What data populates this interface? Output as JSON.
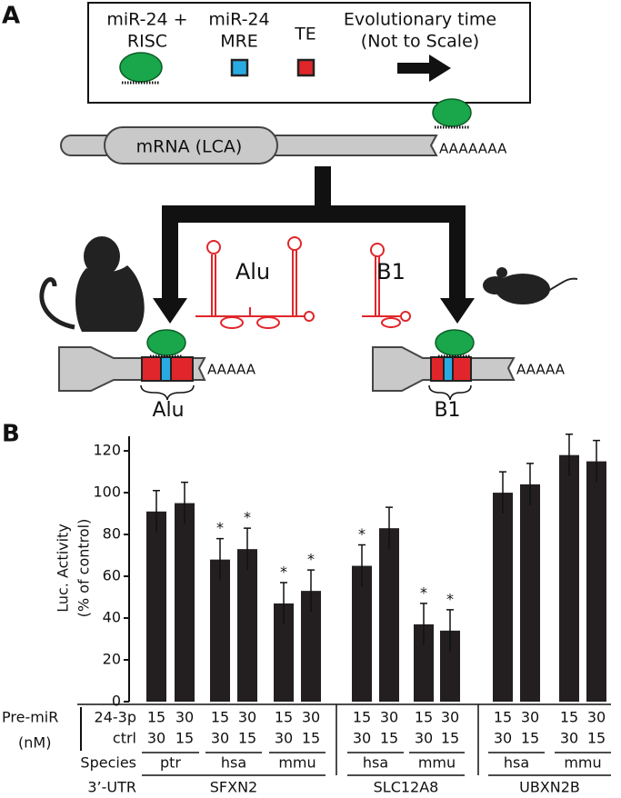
{
  "panel_a": {
    "label": "A",
    "legend": [
      {
        "lines": [
          "miR-24 +",
          "RISC"
        ]
      },
      {
        "lines": [
          "miR-24",
          "MRE"
        ]
      },
      {
        "lines": [
          "TE"
        ]
      },
      {
        "lines": [
          "Evolutionary time",
          "(Not to Scale)"
        ]
      }
    ],
    "mrna_label": "mRNA (LCA)",
    "polya_long": "AAAAAAA",
    "polya_short": "AAAAA",
    "te_labels": [
      "Alu",
      "B1"
    ]
  },
  "chart_data": {
    "type": "bar",
    "panel_label": "B",
    "y_label": [
      "Luc. Activity",
      "(% of control)"
    ],
    "ylim": [
      0,
      127
    ],
    "yticks": [
      0,
      20,
      40,
      60,
      80,
      100,
      120
    ],
    "color": "#231f20",
    "values": [
      91,
      95,
      68,
      73,
      47,
      53,
      65,
      83,
      37,
      34,
      100,
      104,
      118,
      115
    ],
    "errors": [
      10,
      10,
      10,
      10,
      10,
      10,
      10,
      10,
      10,
      10,
      10,
      10,
      10,
      10
    ],
    "significant": [
      false,
      false,
      true,
      true,
      true,
      true,
      true,
      false,
      true,
      true,
      false,
      false,
      false,
      false
    ],
    "sig_marker": "*",
    "row_labels": {
      "premir": "Pre-miR",
      "unit": "(nM)",
      "mir": "24-3p",
      "ctrl": "ctrl",
      "species": "Species",
      "utr": "3’-UTR"
    },
    "mir_conc": [
      15,
      30,
      15,
      30,
      15,
      30,
      15,
      30,
      15,
      30,
      15,
      30,
      15,
      30
    ],
    "ctrl_conc": [
      30,
      15,
      30,
      15,
      30,
      15,
      30,
      15,
      30,
      15,
      30,
      15,
      30,
      15
    ],
    "species": [
      "ptr",
      "hsa",
      "mmu",
      "hsa",
      "mmu",
      "hsa",
      "mmu"
    ],
    "genes": [
      "SFXN2",
      "SLC12A8",
      "UBXN2B"
    ]
  }
}
